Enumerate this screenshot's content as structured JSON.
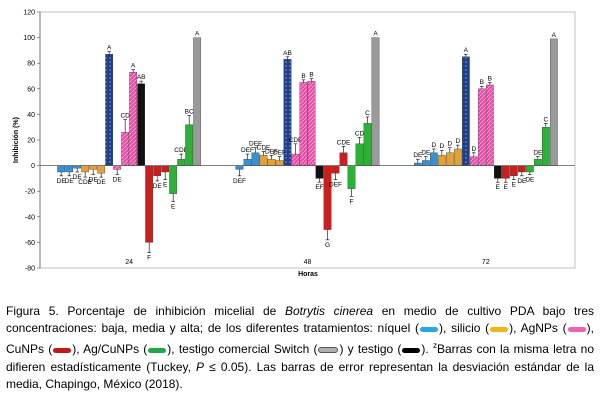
{
  "chart_data": {
    "type": "bar",
    "xlabel": "Horas",
    "ylabel": "Inhibición (%)",
    "ylim": [
      -80,
      120
    ],
    "yticks": [
      -80,
      -60,
      -40,
      -20,
      0,
      20,
      40,
      60,
      80,
      100,
      120
    ],
    "categories": [
      "24",
      "48",
      "72"
    ],
    "series": [
      {
        "key": "niquel_baja",
        "color": "#3a8fd0",
        "values": [
          -5,
          -3,
          2
        ],
        "errors": [
          3,
          5,
          3
        ],
        "letters": [
          "DE",
          "DEF",
          "DE"
        ]
      },
      {
        "key": "niquel_media",
        "color": "#3a8fd0",
        "values": [
          -5,
          5,
          4
        ],
        "errors": [
          3,
          4,
          3
        ],
        "letters": [
          "DE",
          "DEF",
          "DE"
        ]
      },
      {
        "key": "niquel_alta",
        "color": "#3a8fd0",
        "values": [
          -2,
          10,
          10
        ],
        "errors": [
          3,
          4,
          3
        ],
        "letters": [
          "DE",
          "DEF",
          "D"
        ]
      },
      {
        "key": "silicio_baja",
        "color": "#e0a03a",
        "values": [
          -5,
          8,
          8
        ],
        "errors": [
          4,
          3,
          4
        ],
        "letters": [
          "CDE",
          "CDE",
          "D"
        ]
      },
      {
        "key": "silicio_media",
        "color": "#e0a03a",
        "values": [
          -3,
          5,
          10
        ],
        "errors": [
          4,
          3,
          4
        ],
        "letters": [
          "DE",
          "DEF",
          "D"
        ]
      },
      {
        "key": "silicio_alta",
        "color": "#e0a03a",
        "values": [
          -6,
          4,
          13
        ],
        "errors": [
          3,
          3,
          3
        ],
        "letters": [
          "DE",
          "DEF",
          "D"
        ]
      },
      {
        "key": "switch",
        "color": "#1f3f8a",
        "values": [
          87,
          83,
          85
        ],
        "errors": [
          2,
          2,
          2
        ],
        "letters": [
          "A",
          "AB",
          "A"
        ]
      },
      {
        "key": "agnps_baja",
        "color": "#e84fa8",
        "values": [
          -3,
          9,
          7
        ],
        "errors": [
          4,
          8,
          3
        ],
        "letters": [
          "DE",
          "CDE",
          "D"
        ]
      },
      {
        "key": "agnps_media",
        "color": "#e84fa8",
        "values": [
          26,
          65,
          60
        ],
        "errors": [
          10,
          2,
          2
        ],
        "letters": [
          "CD",
          "B",
          "B"
        ]
      },
      {
        "key": "agnps_alta",
        "color": "#e84fa8",
        "values": [
          73,
          66,
          63
        ],
        "errors": [
          2,
          2,
          2
        ],
        "letters": [
          "A",
          "B",
          "B"
        ]
      },
      {
        "key": "testigo",
        "color": "#111111",
        "values": [
          64,
          -10,
          -10
        ],
        "errors": [
          2,
          3,
          3
        ],
        "letters": [
          "AB",
          "EF",
          "E"
        ]
      },
      {
        "key": "cunps_baja",
        "color": "#c62020",
        "values": [
          -60,
          -50,
          -10
        ],
        "errors": [
          8,
          8,
          3
        ],
        "letters": [
          "F",
          "G",
          "E"
        ]
      },
      {
        "key": "cunps_media",
        "color": "#c62020",
        "values": [
          -8,
          -6,
          -8
        ],
        "errors": [
          4,
          5,
          3
        ],
        "letters": [
          "DE",
          "DEF",
          "E"
        ]
      },
      {
        "key": "cunps_alta",
        "color": "#c62020",
        "values": [
          -5,
          10,
          -5
        ],
        "errors": [
          6,
          5,
          3
        ],
        "letters": [
          "E",
          "CDE",
          "DE"
        ]
      },
      {
        "key": "agcunps_baja",
        "color": "#2eb036",
        "values": [
          -22,
          -18,
          -5
        ],
        "errors": [
          6,
          6,
          2
        ],
        "letters": [
          "E",
          "F",
          "DE"
        ]
      },
      {
        "key": "agcunps_media",
        "color": "#2eb036",
        "values": [
          5,
          17,
          5
        ],
        "errors": [
          4,
          5,
          2
        ],
        "letters": [
          "CDE",
          "CD",
          "DE"
        ]
      },
      {
        "key": "agcunps_alta",
        "color": "#2eb036",
        "values": [
          32,
          33,
          30
        ],
        "errors": [
          7,
          5,
          3
        ],
        "letters": [
          "BC",
          "C",
          "C"
        ]
      },
      {
        "key": "switch_testigo",
        "color": "#9a9a9a",
        "values": [
          100,
          100,
          99
        ],
        "errors": [
          0,
          0,
          0
        ],
        "letters": [
          "A",
          "A",
          "A"
        ]
      }
    ]
  },
  "caption": {
    "fig_label": "Figura 5. Porcentaje de inhibición micelial de ",
    "species": "Botrytis cinerea",
    "t1": " en medio de cultivo PDA bajo tres concentraciones: baja, media y alta; de los diferentes tratamientos: níquel (",
    "t2": "), silicio (",
    "t3": "), AgNPs (",
    "t4": "), CuNPs (",
    "t5": "), Ag/CuNPs (",
    "t6": "), testigo comercial Switch (",
    "t7": ") y testigo (",
    "t8": "). ",
    "sup": "z",
    "t9": "Barras con la misma letra no difieren estadísticamente (Tuckey, ",
    "p_letter": "P",
    "t10": " ≤ 0.05). Las barras de error representan la desviación estándar de la media, Chapingo, México (2018).",
    "swatch_colors": {
      "niquel": "#29a8e0",
      "silicio": "#f2b417",
      "agnps": "#f060b0",
      "cunps": "#c01818",
      "agcunps": "#1ea84a",
      "switch": "#b0b0b0",
      "testigo": "#000000"
    }
  }
}
